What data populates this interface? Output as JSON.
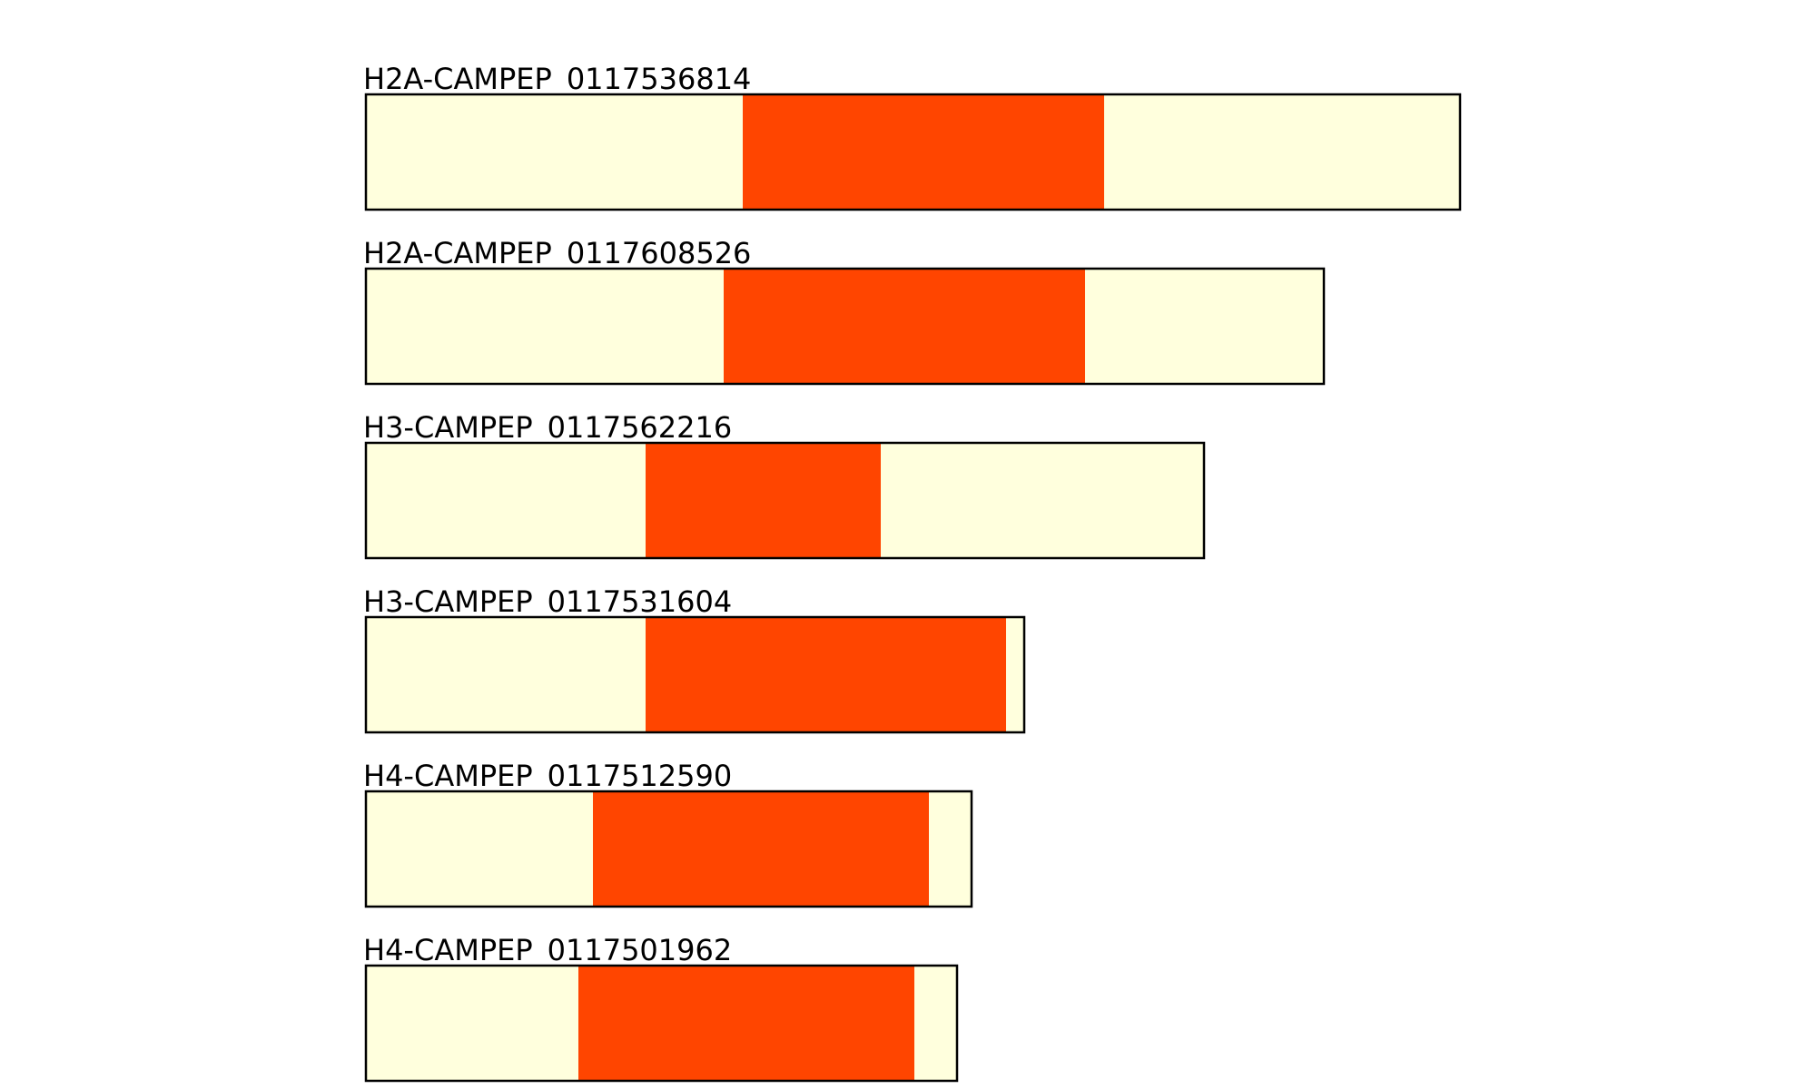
{
  "colors": {
    "background_segment": "#ffffdd",
    "highlight_segment": "#ff4500",
    "outline": "#000000"
  },
  "diagram_data": {
    "type": "domain-architecture",
    "scale_note": "relative sequence length; positions in arbitrary residue-like units",
    "tracks": [
      {
        "label": "H2A-CAMPEP_0117536814",
        "length": 1205,
        "domain_start": 415,
        "domain_end": 813
      },
      {
        "label": "H2A-CAMPEP_0117608526",
        "length": 1055,
        "domain_start": 394,
        "domain_end": 792
      },
      {
        "label": "H3-CAMPEP_0117562216",
        "length": 923,
        "domain_start": 308,
        "domain_end": 567
      },
      {
        "label": "H3-CAMPEP_0117531604",
        "length": 725,
        "domain_start": 308,
        "domain_end": 705
      },
      {
        "label": "H4-CAMPEP_0117512590",
        "length": 667,
        "domain_start": 250,
        "domain_end": 620
      },
      {
        "label": "H4-CAMPEP_0117501962",
        "length": 651,
        "domain_start": 234,
        "domain_end": 604
      }
    ]
  }
}
